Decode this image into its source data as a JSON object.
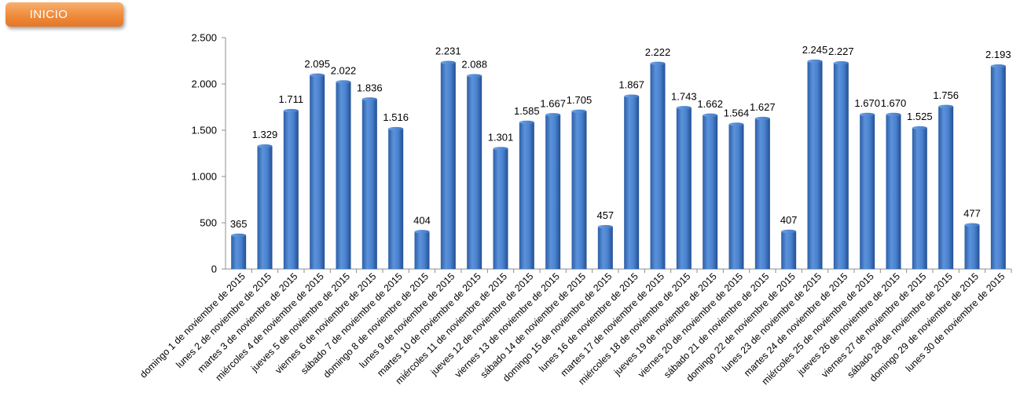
{
  "nav": {
    "inicio_label": "INICIO"
  },
  "colors": {
    "bar": "#3f76c4",
    "accent_button": "#ef8b3a"
  },
  "chart_data": {
    "type": "bar",
    "title": "",
    "xlabel": "",
    "ylabel": "",
    "ylim": [
      0,
      2500
    ],
    "yticks": [
      0,
      500,
      1000,
      1500,
      2000,
      2500
    ],
    "ytick_labels": [
      "0",
      "500",
      "1.000",
      "1.500",
      "2.000",
      "2.500"
    ],
    "grid": false,
    "legend": "none",
    "categories": [
      "domingo 1 de noviembre de 2015",
      "lunes 2 de noviembre de 2015",
      "martes 3 de noviembre de 2015",
      "miércoles 4 de noviembre de 2015",
      "jueves 5 de noviembre de 2015",
      "viernes 6 de noviembre de 2015",
      "sábado 7 de noviembre de 2015",
      "domingo 8 de noviembre de 2015",
      "lunes 9 de noviembre de 2015",
      "martes 10 de noviembre de 2015",
      "miércoles 11 de noviembre de 2015",
      "jueves 12 de noviembre de 2015",
      "viernes 13 de noviembre de 2015",
      "sábado 14 de noviembre de 2015",
      "domingo 15 de noviembre de 2015",
      "lunes 16 de noviembre de 2015",
      "martes 17 de noviembre de 2015",
      "miércoles 18 de noviembre de 2015",
      "jueves 19 de noviembre de 2015",
      "viernes 20 de noviembre de 2015",
      "sábado 21 de noviembre de 2015",
      "domingo 22 de noviembre de 2015",
      "lunes 23 de noviembre de 2015",
      "martes 24 de noviembre de 2015",
      "miércoles 25 de noviembre de 2015",
      "jueves 26 de noviembre de 2015",
      "viernes 27 de noviembre de 2015",
      "sábado 28 de noviembre de 2015",
      "domingo 29 de noviembre de 2015",
      "lunes 30 de noviembre de 2015"
    ],
    "values": [
      365,
      1329,
      1711,
      2095,
      2022,
      1836,
      1516,
      404,
      2231,
      2088,
      1301,
      1585,
      1667,
      1705,
      457,
      1867,
      2222,
      1743,
      1662,
      1564,
      1627,
      407,
      2245,
      2227,
      1670,
      1670,
      1525,
      1756,
      477,
      2193
    ],
    "value_labels": [
      "365",
      "1.329",
      "1.711",
      "2.095",
      "2.022",
      "1.836",
      "1.516",
      "404",
      "2.231",
      "2.088",
      "1.301",
      "1.585",
      "1.667",
      "1.705",
      "457",
      "1.867",
      "2.222",
      "1.743",
      "1.662",
      "1.564",
      "1.627",
      "407",
      "2.245",
      "2.227",
      "1.670",
      "1.670",
      "1.525",
      "1.756",
      "477",
      "2.193"
    ]
  }
}
